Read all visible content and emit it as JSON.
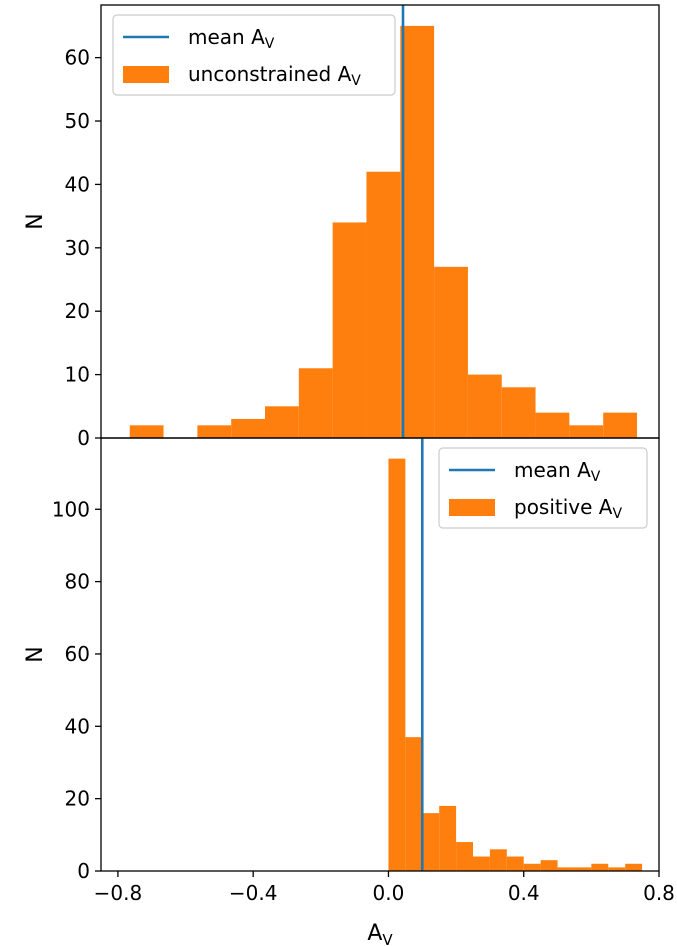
{
  "figure": {
    "shared_xlabel": "A",
    "shared_xlabel_sub": "V"
  },
  "colors": {
    "hist": "#ff7f0e",
    "mean_line": "#1f77b4",
    "axes": "#000000"
  },
  "chart_data": [
    {
      "type": "bar",
      "panel": "top",
      "ylabel": "N",
      "xlim": [
        -0.85,
        0.8
      ],
      "ylim": [
        0,
        68.3
      ],
      "yticks": [
        0,
        10,
        20,
        30,
        40,
        50,
        60
      ],
      "xticks_shown": false,
      "legend_loc": "upper left",
      "legend": [
        {
          "label": "mean A",
          "sub": "V",
          "kind": "line"
        },
        {
          "label": "unconstrained A",
          "sub": "V",
          "kind": "patch"
        }
      ],
      "mean": 0.043,
      "bins": [
        {
          "x0": -0.765,
          "x1": -0.665,
          "count": 2
        },
        {
          "x0": -0.565,
          "x1": -0.465,
          "count": 2
        },
        {
          "x0": -0.465,
          "x1": -0.365,
          "count": 3
        },
        {
          "x0": -0.365,
          "x1": -0.265,
          "count": 5
        },
        {
          "x0": -0.265,
          "x1": -0.165,
          "count": 11
        },
        {
          "x0": -0.165,
          "x1": -0.065,
          "count": 34
        },
        {
          "x0": -0.065,
          "x1": 0.035,
          "count": 42
        },
        {
          "x0": 0.035,
          "x1": 0.135,
          "count": 65
        },
        {
          "x0": 0.135,
          "x1": 0.235,
          "count": 27
        },
        {
          "x0": 0.235,
          "x1": 0.335,
          "count": 10
        },
        {
          "x0": 0.335,
          "x1": 0.435,
          "count": 8
        },
        {
          "x0": 0.435,
          "x1": 0.535,
          "count": 4
        },
        {
          "x0": 0.535,
          "x1": 0.635,
          "count": 2
        },
        {
          "x0": 0.635,
          "x1": 0.735,
          "count": 4
        }
      ]
    },
    {
      "type": "bar",
      "panel": "bottom",
      "ylabel": "N",
      "xlim": [
        -0.85,
        0.8
      ],
      "ylim": [
        0,
        119.7
      ],
      "yticks": [
        0,
        20,
        40,
        60,
        80,
        100
      ],
      "xticks": [
        -0.8,
        -0.4,
        0.0,
        0.4,
        0.8
      ],
      "xtick_labels": [
        "−0.8",
        "−0.4",
        "0.0",
        "0.4",
        "0.8"
      ],
      "xticks_shown": true,
      "legend_loc": "upper right",
      "legend": [
        {
          "label": "mean A",
          "sub": "V",
          "kind": "line"
        },
        {
          "label": "positive A",
          "sub": "V",
          "kind": "patch"
        }
      ],
      "mean": 0.1,
      "bins": [
        {
          "x0": 0.0,
          "x1": 0.05,
          "count": 114
        },
        {
          "x0": 0.05,
          "x1": 0.1,
          "count": 37
        },
        {
          "x0": 0.1,
          "x1": 0.15,
          "count": 16
        },
        {
          "x0": 0.15,
          "x1": 0.2,
          "count": 18
        },
        {
          "x0": 0.2,
          "x1": 0.25,
          "count": 8
        },
        {
          "x0": 0.25,
          "x1": 0.3,
          "count": 4
        },
        {
          "x0": 0.3,
          "x1": 0.35,
          "count": 6
        },
        {
          "x0": 0.35,
          "x1": 0.4,
          "count": 4
        },
        {
          "x0": 0.4,
          "x1": 0.45,
          "count": 2
        },
        {
          "x0": 0.45,
          "x1": 0.5,
          "count": 3
        },
        {
          "x0": 0.5,
          "x1": 0.55,
          "count": 1
        },
        {
          "x0": 0.55,
          "x1": 0.6,
          "count": 1
        },
        {
          "x0": 0.6,
          "x1": 0.65,
          "count": 2
        },
        {
          "x0": 0.65,
          "x1": 0.7,
          "count": 1
        },
        {
          "x0": 0.7,
          "x1": 0.75,
          "count": 2
        }
      ]
    }
  ]
}
